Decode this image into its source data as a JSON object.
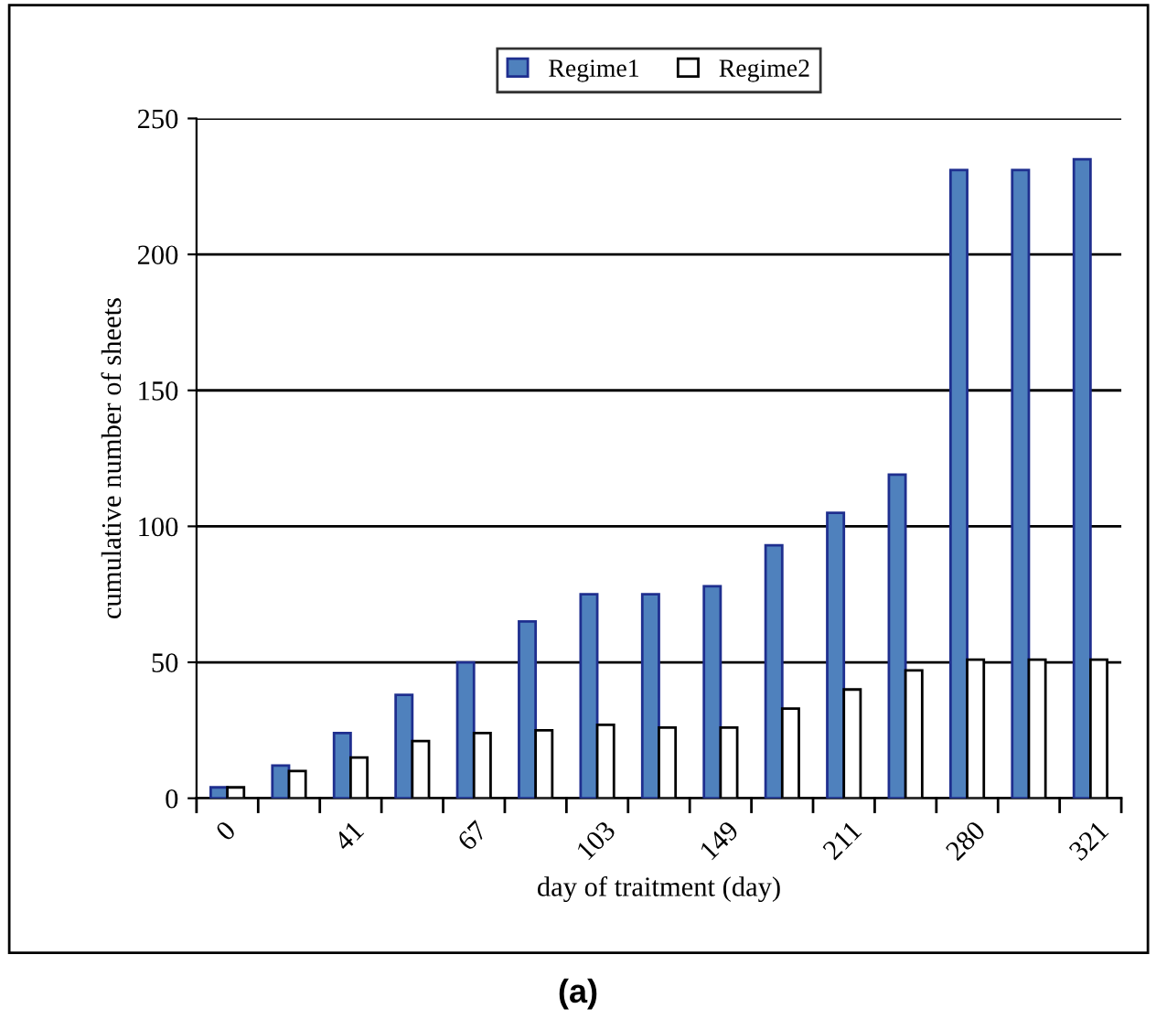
{
  "chart_data": {
    "type": "bar",
    "xlabel": "day of traitment (day)",
    "ylabel": "cumulative number of sheets",
    "categories": [
      "0",
      null,
      "41",
      null,
      "67",
      null,
      "103",
      null,
      "149",
      null,
      "211",
      null,
      "280",
      null,
      "321"
    ],
    "series": [
      {
        "name": "Regime1",
        "color": "#4f81bd",
        "values": [
          4,
          12,
          24,
          38,
          50,
          65,
          75,
          75,
          78,
          93,
          105,
          119,
          231,
          231,
          235
        ]
      },
      {
        "name": "Regime2",
        "color": "#ffffff",
        "values": [
          4,
          10,
          15,
          21,
          24,
          25,
          27,
          26,
          26,
          33,
          40,
          47,
          51,
          51,
          51
        ]
      }
    ],
    "ylim": [
      0,
      250
    ],
    "yticks": [
      0,
      50,
      100,
      150,
      200,
      250
    ],
    "grid": "y",
    "legend": "top",
    "annotations": [
      "(a)"
    ]
  }
}
